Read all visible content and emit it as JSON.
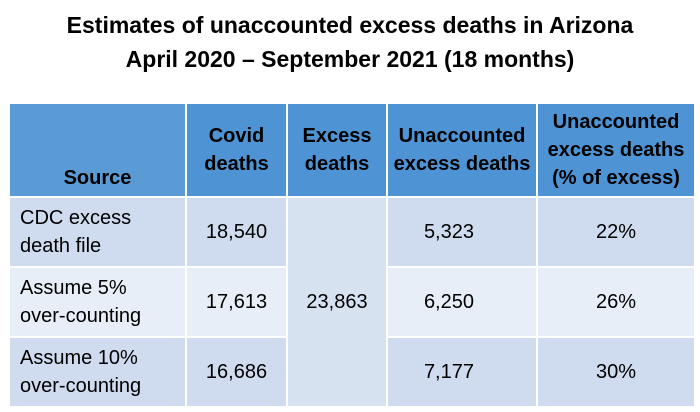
{
  "title": {
    "line1": "Estimates of unaccounted excess deaths in Arizona",
    "line2": "April 2020 – September 2021 (18 months)"
  },
  "table": {
    "headers": {
      "source": "Source",
      "covid": [
        "Covid",
        "deaths"
      ],
      "excess": [
        "Excess",
        "deaths"
      ],
      "unaccounted": [
        "Unaccounted",
        "excess deaths"
      ],
      "unaccounted_pct": [
        "Unaccounted",
        "excess deaths",
        "(% of excess)"
      ]
    },
    "excess_deaths": "23,863",
    "rows": [
      {
        "source": [
          "CDC excess",
          "death file"
        ],
        "covid_deaths": "18,540",
        "unaccounted": "5,323",
        "pct": "22%"
      },
      {
        "source": [
          "Assume 5%",
          "over-counting"
        ],
        "covid_deaths": "17,613",
        "unaccounted": "6,250",
        "pct": "26%"
      },
      {
        "source": [
          "Assume 10%",
          "over-counting"
        ],
        "covid_deaths": "16,686",
        "unaccounted": "7,177",
        "pct": "30%"
      }
    ]
  }
}
